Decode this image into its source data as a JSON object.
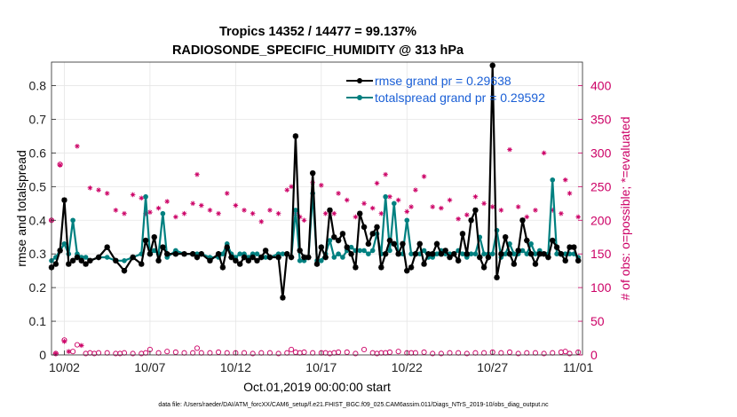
{
  "chart_data": {
    "type": "line",
    "title": "Tropics 14352 / 14477 = 99.137%",
    "subtitle": "RADIOSONDE_SPECIFIC_HUMIDITY @ 313 hPa",
    "xlabel": "Oct.01,2019 00:00:00 start",
    "ylabel": "rmse and totalspread",
    "ylabel_right": "# of obs: o=possible; *=evaluated",
    "footer": "data file: /Users/raeder/DAI/ATM_forcXX/CAM6_setup/f.e21.FHIST_BGC.f09_025.CAM6assim.011/Diags_NTrS_2019-10/obs_diag_output.nc",
    "x_tick_labels": [
      "10/02",
      "10/07",
      "10/12",
      "10/17",
      "10/22",
      "10/27",
      "11/01"
    ],
    "x_tick_values": [
      2,
      7,
      12,
      17,
      22,
      27,
      32
    ],
    "xlim": [
      1.25,
      32.25
    ],
    "ylim": [
      0,
      0.87
    ],
    "y_ticks": [
      0,
      0.1,
      0.2,
      0.3,
      0.4,
      0.5,
      0.6,
      0.7,
      0.8
    ],
    "y_tick_labels": [
      "0",
      "0.1",
      "0.2",
      "0.3",
      "0.4",
      "0.5",
      "0.6",
      "0.7",
      "0.8"
    ],
    "ylim_right": [
      0,
      435
    ],
    "y_ticks_right": [
      0,
      50,
      100,
      150,
      200,
      250,
      300,
      350,
      400
    ],
    "y_tick_labels_right": [
      "0",
      "50",
      "100",
      "150",
      "200",
      "250",
      "300",
      "350",
      "400"
    ],
    "legend_location": "top-right",
    "colors": {
      "rmse": "#000000",
      "totalspread": "#008080",
      "obs": "#cc0066",
      "grid": "#e6e6e6"
    },
    "series": [
      {
        "name": "rmse grand pr = 0.29638",
        "x": [
          1.25,
          1.5,
          1.75,
          2.0,
          2.25,
          2.5,
          2.75,
          3.0,
          3.25,
          3.5,
          4.0,
          4.5,
          5.0,
          5.5,
          6.0,
          6.5,
          6.75,
          7.0,
          7.25,
          7.5,
          7.75,
          8.0,
          8.5,
          9.0,
          9.5,
          9.75,
          10.0,
          10.5,
          11.0,
          11.25,
          11.5,
          11.75,
          12.0,
          12.25,
          12.5,
          12.75,
          13.0,
          13.25,
          13.5,
          13.75,
          14.0,
          14.5,
          14.75,
          15.0,
          15.25,
          15.5,
          15.75,
          16.0,
          16.25,
          16.5,
          16.75,
          17.0,
          17.25,
          17.5,
          17.75,
          18.0,
          18.25,
          18.5,
          18.75,
          19.0,
          19.25,
          19.5,
          19.75,
          20.0,
          20.25,
          20.5,
          20.75,
          21.0,
          21.25,
          21.5,
          21.75,
          22.0,
          22.25,
          22.5,
          22.75,
          23.0,
          23.25,
          23.5,
          23.75,
          24.0,
          24.25,
          24.5,
          24.75,
          25.0,
          25.25,
          25.5,
          25.75,
          26.0,
          26.25,
          26.5,
          26.75,
          27.0,
          27.25,
          27.5,
          27.75,
          28.0,
          28.25,
          28.5,
          28.75,
          29.0,
          29.25,
          29.5,
          29.75,
          30.0,
          30.25,
          30.5,
          30.75,
          31.0,
          31.25,
          31.5,
          31.75,
          32.0
        ],
        "values": [
          0.26,
          0.27,
          0.31,
          0.46,
          0.27,
          0.28,
          0.29,
          0.28,
          0.27,
          0.28,
          0.29,
          0.32,
          0.28,
          0.25,
          0.29,
          0.27,
          0.34,
          0.3,
          0.35,
          0.28,
          0.32,
          0.3,
          0.3,
          0.3,
          0.3,
          0.29,
          0.3,
          0.28,
          0.3,
          0.26,
          0.32,
          0.29,
          0.28,
          0.27,
          0.29,
          0.28,
          0.29,
          0.28,
          0.29,
          0.31,
          0.29,
          0.29,
          0.17,
          0.3,
          0.29,
          0.65,
          0.31,
          0.29,
          0.29,
          0.54,
          0.27,
          0.32,
          0.29,
          0.43,
          0.35,
          0.34,
          0.36,
          0.32,
          0.3,
          0.26,
          0.42,
          0.38,
          0.33,
          0.36,
          0.38,
          0.26,
          0.3,
          0.34,
          0.33,
          0.3,
          0.33,
          0.25,
          0.26,
          0.3,
          0.33,
          0.27,
          0.3,
          0.3,
          0.33,
          0.3,
          0.31,
          0.29,
          0.3,
          0.28,
          0.36,
          0.3,
          0.4,
          0.43,
          0.29,
          0.26,
          0.29,
          0.86,
          0.23,
          0.3,
          0.35,
          0.3,
          0.27,
          0.31,
          0.4,
          0.34,
          0.3,
          0.27,
          0.3,
          0.3,
          0.29,
          0.34,
          0.32,
          0.3,
          0.28,
          0.32,
          0.32,
          0.28
        ]
      },
      {
        "name": "totalspread grand pr = 0.29592",
        "x": [
          1.25,
          1.5,
          1.75,
          2.0,
          2.25,
          2.5,
          2.75,
          3.0,
          3.25,
          3.5,
          4.0,
          4.5,
          5.0,
          5.5,
          6.0,
          6.5,
          6.75,
          7.0,
          7.25,
          7.5,
          7.75,
          8.0,
          8.5,
          9.0,
          9.5,
          9.75,
          10.0,
          10.5,
          11.0,
          11.25,
          11.5,
          11.75,
          12.0,
          12.25,
          12.5,
          12.75,
          13.0,
          13.25,
          13.5,
          13.75,
          14.0,
          14.5,
          14.75,
          15.0,
          15.25,
          15.5,
          15.75,
          16.0,
          16.25,
          16.5,
          16.75,
          17.0,
          17.25,
          17.5,
          17.75,
          18.0,
          18.25,
          18.5,
          18.75,
          19.0,
          19.25,
          19.5,
          19.75,
          20.0,
          20.25,
          20.5,
          20.75,
          21.0,
          21.25,
          21.5,
          21.75,
          22.0,
          22.25,
          22.5,
          22.75,
          23.0,
          23.25,
          23.5,
          23.75,
          24.0,
          24.25,
          24.5,
          24.75,
          25.0,
          25.25,
          25.5,
          25.75,
          26.0,
          26.25,
          26.5,
          26.75,
          27.0,
          27.25,
          27.5,
          27.75,
          28.0,
          28.25,
          28.5,
          28.75,
          29.0,
          29.25,
          29.5,
          29.75,
          30.0,
          30.25,
          30.5,
          30.75,
          31.0,
          31.25,
          31.5,
          31.75,
          32.0
        ],
        "values": [
          0.28,
          0.29,
          0.31,
          0.33,
          0.3,
          0.4,
          0.3,
          0.29,
          0.29,
          0.28,
          0.29,
          0.29,
          0.28,
          0.28,
          0.29,
          0.3,
          0.47,
          0.3,
          0.31,
          0.3,
          0.42,
          0.29,
          0.31,
          0.3,
          0.3,
          0.3,
          0.3,
          0.29,
          0.29,
          0.3,
          0.33,
          0.3,
          0.29,
          0.3,
          0.3,
          0.29,
          0.3,
          0.3,
          0.29,
          0.29,
          0.29,
          0.3,
          0.3,
          0.3,
          0.29,
          0.43,
          0.28,
          0.28,
          0.29,
          0.48,
          0.28,
          0.28,
          0.3,
          0.34,
          0.29,
          0.3,
          0.29,
          0.31,
          0.32,
          0.31,
          0.31,
          0.31,
          0.3,
          0.31,
          0.36,
          0.3,
          0.47,
          0.31,
          0.45,
          0.3,
          0.3,
          0.4,
          0.3,
          0.3,
          0.3,
          0.31,
          0.29,
          0.29,
          0.3,
          0.31,
          0.3,
          0.3,
          0.3,
          0.31,
          0.3,
          0.29,
          0.3,
          0.3,
          0.35,
          0.3,
          0.3,
          0.3,
          0.37,
          0.29,
          0.3,
          0.33,
          0.3,
          0.3,
          0.31,
          0.3,
          0.33,
          0.3,
          0.31,
          0.3,
          0.3,
          0.52,
          0.3,
          0.3,
          0.3,
          0.3,
          0.3,
          0.29
        ]
      },
      {
        "name": "obs possible (o)",
        "x": [
          1.25,
          1.5,
          1.75,
          2.0,
          2.5,
          2.75,
          3.25,
          3.5,
          3.75,
          4.0,
          4.5,
          5.0,
          5.25,
          5.5,
          6.0,
          6.5,
          6.75,
          7.0,
          7.5,
          8.0,
          8.5,
          9.0,
          9.5,
          9.75,
          10.0,
          10.5,
          11.0,
          11.5,
          12.0,
          12.5,
          13.0,
          13.5,
          14.0,
          14.5,
          15.0,
          15.25,
          15.5,
          15.75,
          16.0,
          16.5,
          17.0,
          17.25,
          17.5,
          17.75,
          18.0,
          18.5,
          19.0,
          19.5,
          20.0,
          20.25,
          20.5,
          20.75,
          21.0,
          21.5,
          22.0,
          22.25,
          22.5,
          23.0,
          23.5,
          24.0,
          24.5,
          25.0,
          25.5,
          26.0,
          26.5,
          27.0,
          27.5,
          28.0,
          28.5,
          29.0,
          29.5,
          30.0,
          30.5,
          31.0,
          31.25,
          31.5,
          32.0
        ],
        "values": [
          200,
          2,
          283,
          22,
          5,
          15,
          2,
          3,
          2,
          3,
          3,
          2,
          2,
          3,
          2,
          2,
          3,
          8,
          3,
          5,
          4,
          3,
          3,
          10,
          3,
          3,
          4,
          3,
          3,
          3,
          2,
          3,
          3,
          2,
          3,
          8,
          4,
          3,
          4,
          3,
          3,
          3,
          2,
          3,
          4,
          4,
          2,
          8,
          3,
          2,
          3,
          3,
          4,
          5,
          3,
          3,
          3,
          4,
          2,
          2,
          3,
          3,
          2,
          3,
          3,
          4,
          3,
          4,
          2,
          3,
          3,
          2,
          3,
          4,
          5,
          2,
          4
        ]
      },
      {
        "name": "obs evaluated (*)",
        "x": [
          1.25,
          1.5,
          1.75,
          2.0,
          2.25,
          2.75,
          3.0,
          3.5,
          4.0,
          4.5,
          5.0,
          5.5,
          6.0,
          6.5,
          6.75,
          7.0,
          7.5,
          8.0,
          8.5,
          9.0,
          9.5,
          9.75,
          10.0,
          10.5,
          11.0,
          11.5,
          12.0,
          12.5,
          13.0,
          13.5,
          14.0,
          14.5,
          15.0,
          15.25,
          15.5,
          15.75,
          16.0,
          16.5,
          17.0,
          17.25,
          17.5,
          17.75,
          18.0,
          18.5,
          19.0,
          19.5,
          20.0,
          20.25,
          20.5,
          20.75,
          21.0,
          21.5,
          22.0,
          22.25,
          22.5,
          23.0,
          23.5,
          24.0,
          24.5,
          25.0,
          25.5,
          26.0,
          26.5,
          27.0,
          27.5,
          28.0,
          28.5,
          29.0,
          29.5,
          30.0,
          30.5,
          31.0,
          31.25,
          31.5,
          32.0
        ],
        "values": [
          200,
          2,
          282,
          20,
          5,
          310,
          14,
          248,
          245,
          240,
          215,
          210,
          238,
          233,
          210,
          212,
          218,
          228,
          205,
          210,
          225,
          268,
          222,
          215,
          210,
          240,
          222,
          215,
          210,
          198,
          215,
          210,
          245,
          250,
          210,
          205,
          200,
          256,
          252,
          210,
          215,
          210,
          240,
          230,
          205,
          225,
          218,
          255,
          210,
          268,
          235,
          230,
          213,
          220,
          245,
          265,
          220,
          218,
          230,
          202,
          208,
          235,
          225,
          220,
          215,
          305,
          220,
          205,
          215,
          300,
          215,
          210,
          260,
          240,
          205
        ]
      }
    ]
  }
}
